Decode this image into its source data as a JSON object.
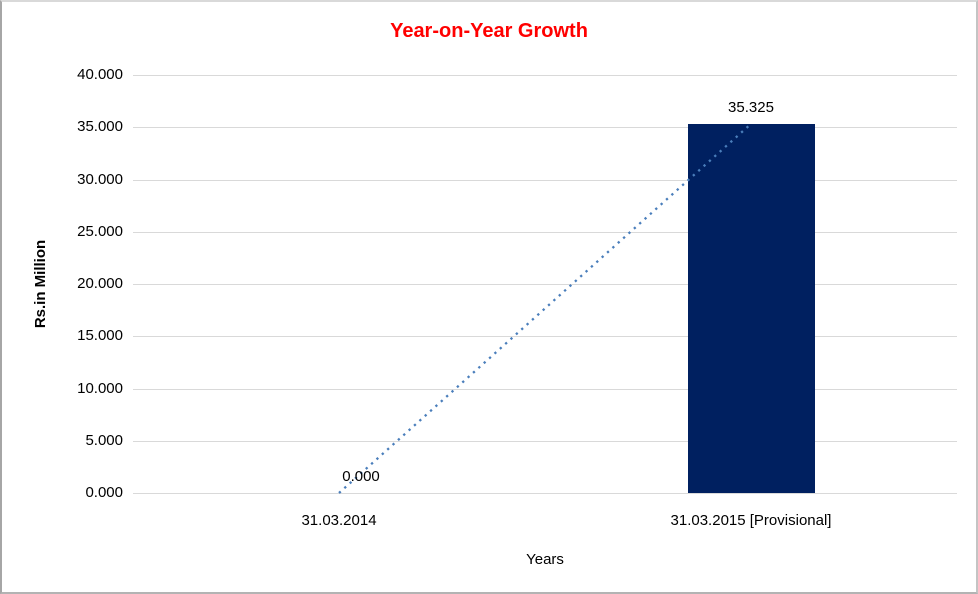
{
  "chart_data": {
    "type": "bar",
    "title": "Year-on-Year Growth",
    "title_color": "#ff0000",
    "xlabel": "Years",
    "ylabel": "Rs.in Million",
    "categories": [
      "31.03.2014",
      "31.03.2015 [Provisional]"
    ],
    "values": [
      0,
      35.325
    ],
    "data_labels": [
      "0.000",
      "35.325"
    ],
    "ylim": [
      0,
      40
    ],
    "ytick_step": 5,
    "ytick_labels": [
      "40.000",
      "35.000",
      "30.000",
      "25.000",
      "20.000",
      "15.000",
      "10.000",
      "5.000",
      "0.000"
    ],
    "grid": "horizontal-only",
    "legend": "none",
    "bar_color": "#002060",
    "gridline_color": "#d9d9d9",
    "text_color": "#000000",
    "trendline": {
      "type": "linear",
      "style": "dotted",
      "color": "#4a7ebb",
      "from_value": 0,
      "to_value": 35.325
    }
  }
}
